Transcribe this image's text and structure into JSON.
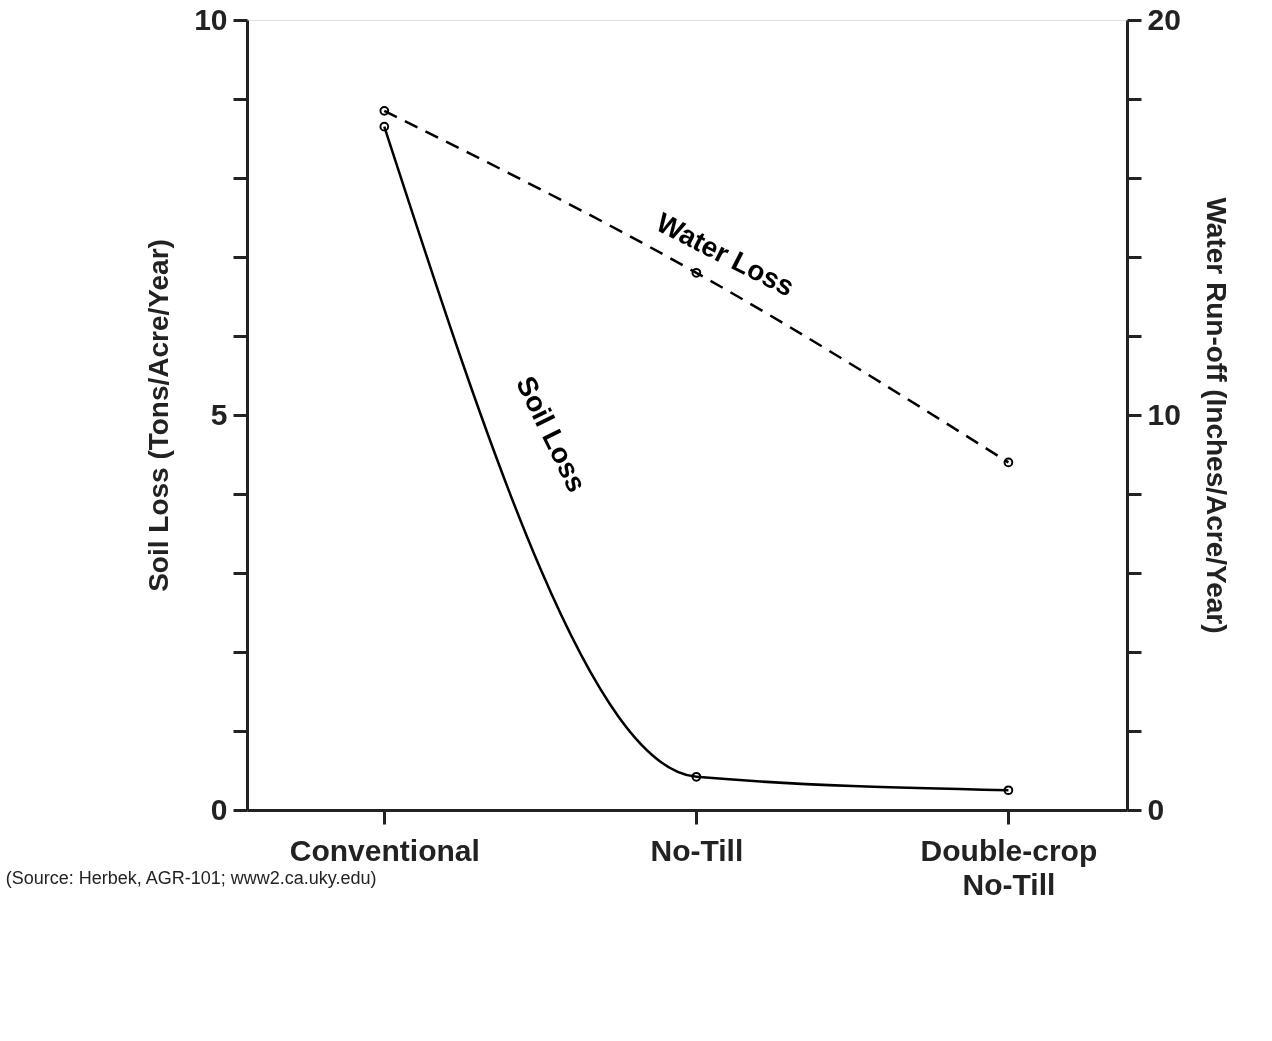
{
  "chart_data": {
    "type": "line",
    "categories": [
      "Conventional",
      "No-Till",
      "Double-crop No-Till"
    ],
    "series": [
      {
        "name": "Soil Loss",
        "color": "#000000",
        "values": [
          8.65,
          0.42,
          0.25
        ],
        "line_style": "solid"
      },
      {
        "name": "Water Loss",
        "color": "#000000",
        "values": [
          17.7,
          13.6,
          8.8
        ],
        "line_style": "dashed",
        "axis": "y2"
      }
    ],
    "ylabel": "Soil Loss (Tons/Acre/Year)",
    "y2label": "Water Run-off (Inches/Acre/Year)",
    "ylim": [
      0,
      10
    ],
    "yticks": [
      0,
      {
        "value": 1,
        "label": null
      },
      {
        "value": 2,
        "label": null
      },
      {
        "value": 3,
        "label": null
      },
      {
        "value": 4,
        "label": null
      },
      5,
      {
        "value": 6,
        "label": null
      },
      {
        "value": 7,
        "label": null
      },
      {
        "value": 8,
        "label": null
      },
      {
        "value": 9,
        "label": null
      },
      10
    ],
    "y2lim": [
      0,
      20
    ],
    "y2ticks": [
      0,
      {
        "value": 2,
        "label": null
      },
      {
        "value": 4,
        "label": null
      },
      {
        "value": 6,
        "label": null
      },
      {
        "value": 8,
        "label": null
      },
      10,
      {
        "value": 12,
        "label": null
      },
      {
        "value": 14,
        "label": null
      },
      {
        "value": 16,
        "label": null
      },
      {
        "value": 18,
        "label": null
      },
      20
    ],
    "marker": "circle",
    "grid": false,
    "annotations": [
      "(Source: Herbek, AGR-101; www2.ca.uky.edu)"
    ]
  }
}
